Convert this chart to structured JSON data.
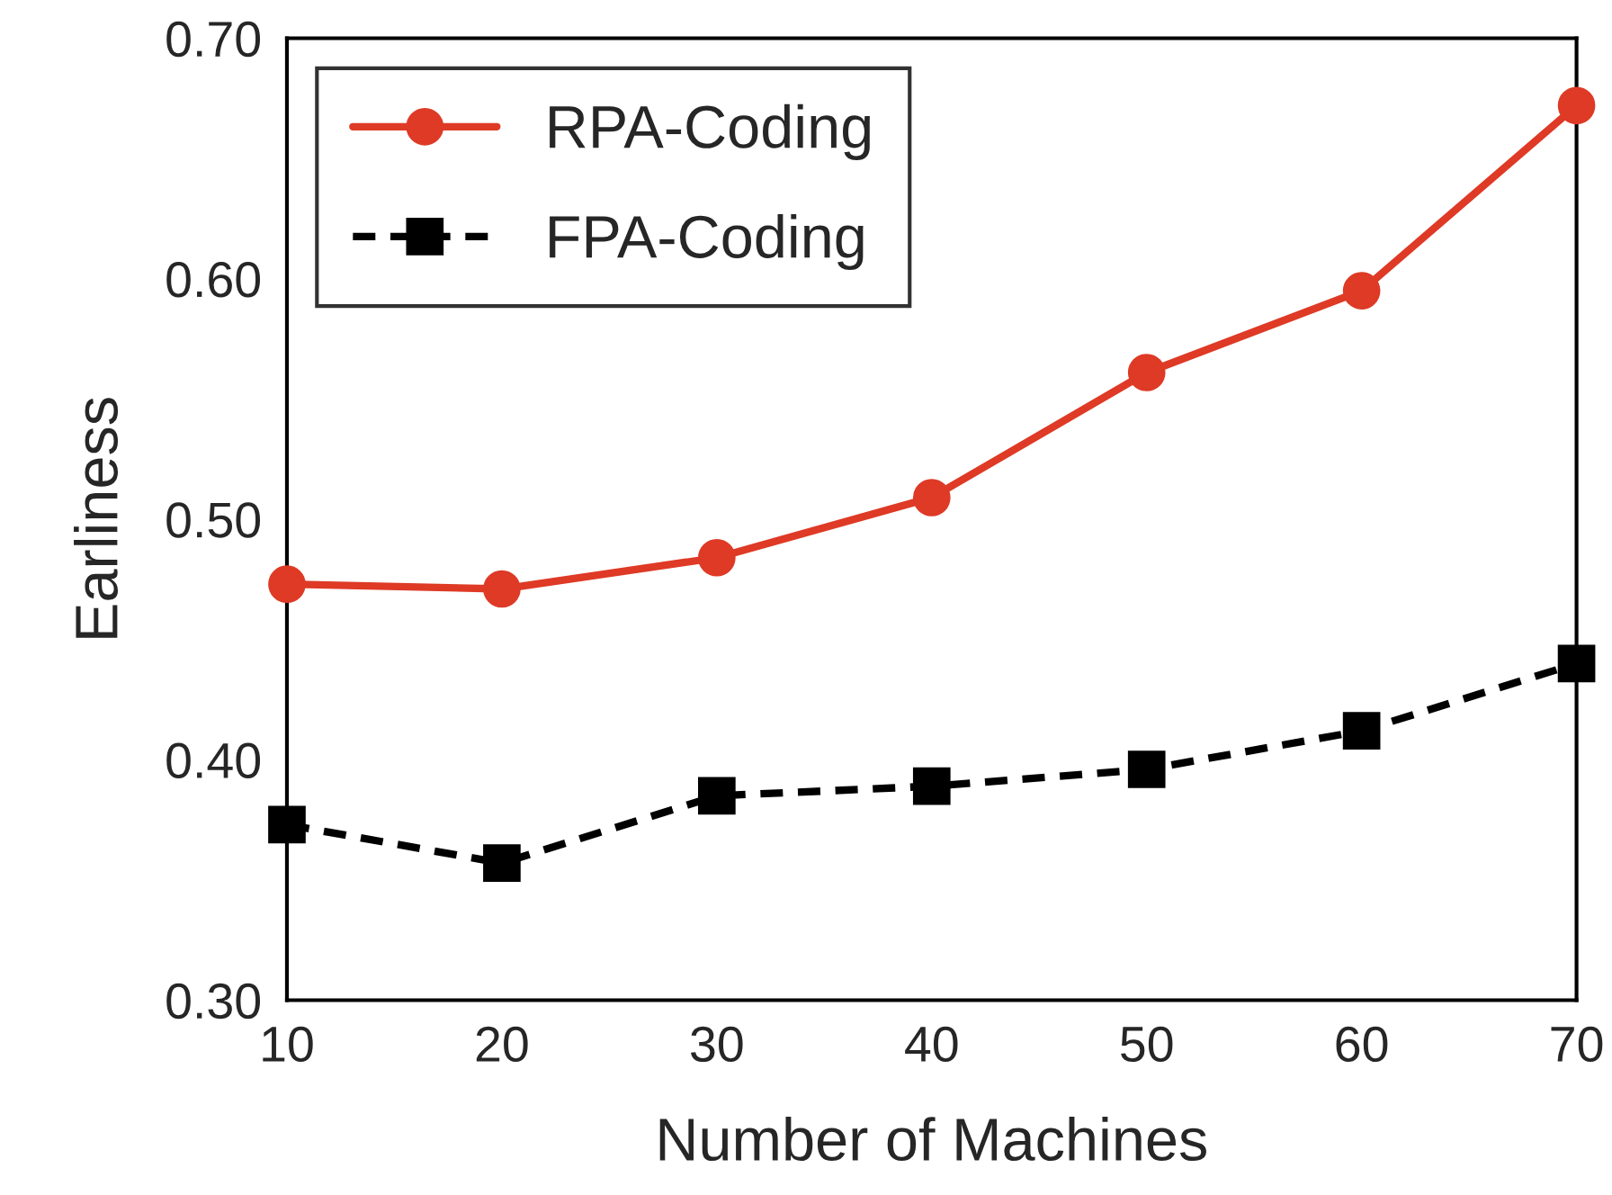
{
  "chart_data": {
    "type": "line",
    "xlabel": "Number of Machines",
    "ylabel": "Earliness",
    "x": [
      10,
      20,
      30,
      40,
      50,
      60,
      70
    ],
    "series": [
      {
        "name": "RPA-Coding",
        "color": "#de3a26",
        "values": [
          0.473,
          0.471,
          0.484,
          0.509,
          0.561,
          0.595,
          0.672
        ],
        "marker": "circle",
        "line_style": "solid"
      },
      {
        "name": "FPA-Coding",
        "color": "#000000",
        "values": [
          0.373,
          0.357,
          0.385,
          0.389,
          0.396,
          0.412,
          0.44
        ],
        "marker": "square",
        "line_style": "dashed"
      }
    ],
    "xlim": [
      10,
      70
    ],
    "ylim": [
      0.3,
      0.7
    ],
    "xticks": [
      10,
      20,
      30,
      40,
      50,
      60,
      70
    ],
    "yticks": [
      {
        "value": 0.3,
        "label": "0.30"
      },
      {
        "value": 0.4,
        "label": "0.40"
      },
      {
        "value": 0.5,
        "label": "0.50"
      },
      {
        "value": 0.6,
        "label": "0.60"
      },
      {
        "value": 0.7,
        "label": "0.70"
      }
    ],
    "grid": false,
    "legend": "top left"
  }
}
